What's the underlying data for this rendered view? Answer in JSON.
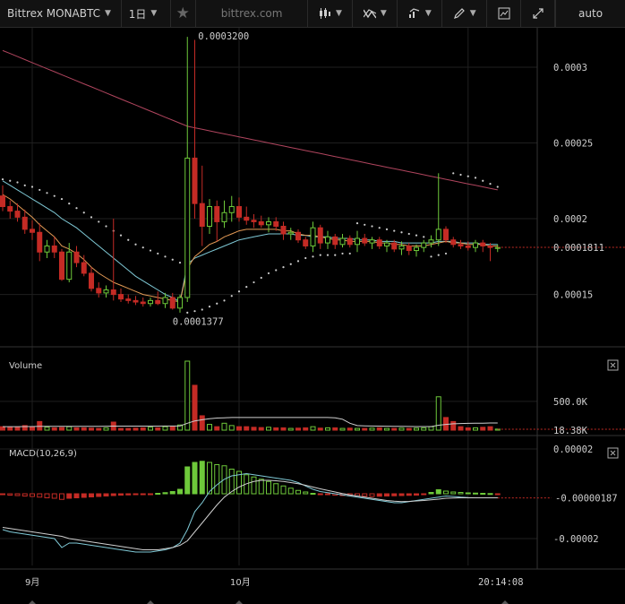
{
  "toolbar": {
    "symbol_label": "Bittrex MONABTC",
    "interval_label": "1日",
    "star_icon": "star-icon",
    "watermark": "bittrex.com",
    "bar_style_icon": "candles-icon",
    "indicators_icon": "indicators-icon",
    "compare_icon": "compare-icon",
    "drawing_icon": "pencil-icon",
    "screenshot_icon": "chart-snapshot-icon",
    "fullscreen_icon": "fullscreen-icon",
    "scale_label": "auto"
  },
  "colors": {
    "up": "#6ec93a",
    "down": "#c42b25",
    "ema_short": "#e39a55",
    "ema_long": "#7fc9d6",
    "sma200": "#b0455e",
    "sar": "#cccccc",
    "grid": "#1f1f1f"
  },
  "chart_data": [
    {
      "type": "candlestick",
      "pane": "price",
      "symbol": "Bittrex MONABTC",
      "interval": "1日",
      "x_labels": [
        "9月",
        "10月"
      ],
      "yticks": [
        "0.00015",
        "0.0002",
        "0.00025",
        "0.0003"
      ],
      "ylim": [
        0.000119,
        0.000326
      ],
      "last_price": "0.0001811",
      "high_annotation": "0.0003200",
      "low_annotation": "0.0001377",
      "ohlc": [
        [
          0.000215,
          0.000222,
          0.000205,
          0.000208
        ],
        [
          0.000208,
          0.000212,
          0.0002,
          0.000205
        ],
        [
          0.000205,
          0.00021,
          0.000198,
          0.000201
        ],
        [
          0.000201,
          0.000206,
          0.00019,
          0.000193
        ],
        [
          0.000193,
          0.000199,
          0.000186,
          0.000191
        ],
        [
          0.000191,
          0.000197,
          0.000172,
          0.000178
        ],
        [
          0.000178,
          0.000186,
          0.000174,
          0.000182
        ],
        [
          0.000182,
          0.000188,
          0.000174,
          0.000178
        ],
        [
          0.000178,
          0.00018,
          0.000159,
          0.00016
        ],
        [
          0.00016,
          0.000184,
          0.000158,
          0.000178
        ],
        [
          0.000178,
          0.000182,
          0.000168,
          0.000171
        ],
        [
          0.000171,
          0.000176,
          0.000162,
          0.000164
        ],
        [
          0.000164,
          0.000168,
          0.000152,
          0.000154
        ],
        [
          0.000154,
          0.000158,
          0.000148,
          0.000151
        ],
        [
          0.000151,
          0.000156,
          0.000148,
          0.000153
        ],
        [
          0.000153,
          0.0002,
          0.000146,
          0.00015
        ],
        [
          0.00015,
          0.000154,
          0.000145,
          0.000147
        ],
        [
          0.000147,
          0.00015,
          0.000144,
          0.000146
        ],
        [
          0.000146,
          0.000149,
          0.000143,
          0.000145
        ],
        [
          0.000145,
          0.000148,
          0.000142,
          0.000144
        ],
        [
          0.000144,
          0.000148,
          0.000142,
          0.000146
        ],
        [
          0.000146,
          0.000152,
          0.000143,
          0.000144
        ],
        [
          0.000144,
          0.000151,
          0.000141,
          0.000148
        ],
        [
          0.000148,
          0.000151,
          0.00014,
          0.000141
        ],
        [
          0.000141,
          0.00015,
          0.000138,
          0.000148
        ],
        [
          0.000148,
          0.00032,
          0.000145,
          0.00024
        ],
        [
          0.00024,
          0.000318,
          0.0002,
          0.00021
        ],
        [
          0.00021,
          0.000235,
          0.000182,
          0.000195
        ],
        [
          0.000195,
          0.000213,
          0.00019,
          0.000208
        ],
        [
          0.000208,
          0.000212,
          0.000185,
          0.000198
        ],
        [
          0.000198,
          0.000212,
          0.000194,
          0.000204
        ],
        [
          0.000204,
          0.000215,
          0.000198,
          0.000208
        ],
        [
          0.000208,
          0.000214,
          0.000198,
          0.000201
        ],
        [
          0.000201,
          0.000208,
          0.000196,
          0.000199
        ],
        [
          0.000199,
          0.000203,
          0.000194,
          0.000198
        ],
        [
          0.000198,
          0.000202,
          0.000194,
          0.000196
        ],
        [
          0.000196,
          0.000201,
          0.000191,
          0.000198
        ],
        [
          0.000198,
          0.000201,
          0.000192,
          0.000195
        ],
        [
          0.000195,
          0.000198,
          0.000186,
          0.00019
        ],
        [
          0.00019,
          0.000194,
          0.000186,
          0.000191
        ],
        [
          0.000191,
          0.000193,
          0.000184,
          0.000186
        ],
        [
          0.000186,
          0.000188,
          0.00018,
          0.000182
        ],
        [
          0.000182,
          0.000198,
          0.000178,
          0.000194
        ],
        [
          0.000194,
          0.000196,
          0.00018,
          0.000184
        ],
        [
          0.000184,
          0.000192,
          0.00018,
          0.000188
        ],
        [
          0.000188,
          0.00019,
          0.00018,
          0.000183
        ],
        [
          0.000183,
          0.00019,
          0.000181,
          0.000187
        ],
        [
          0.000187,
          0.000189,
          0.000181,
          0.000183
        ],
        [
          0.000183,
          0.000192,
          0.000178,
          0.000187
        ],
        [
          0.000187,
          0.00019,
          0.000182,
          0.000184
        ],
        [
          0.000184,
          0.000188,
          0.00018,
          0.000186
        ],
        [
          0.000186,
          0.000188,
          0.00018,
          0.000182
        ],
        [
          0.000182,
          0.000186,
          0.000178,
          0.000184
        ],
        [
          0.000184,
          0.000186,
          0.000178,
          0.00018
        ],
        [
          0.00018,
          0.000185,
          0.000176,
          0.000182
        ],
        [
          0.000182,
          0.000184,
          0.000176,
          0.000179
        ],
        [
          0.000179,
          0.000183,
          0.000175,
          0.000181
        ],
        [
          0.000181,
          0.000186,
          0.000178,
          0.000184
        ],
        [
          0.000184,
          0.000189,
          0.000181,
          0.000186
        ],
        [
          0.000186,
          0.00023,
          0.000182,
          0.000193
        ],
        [
          0.000193,
          0.000195,
          0.000184,
          0.000186
        ],
        [
          0.000186,
          0.000188,
          0.000181,
          0.000183
        ],
        [
          0.000183,
          0.000186,
          0.00018,
          0.000182
        ],
        [
          0.000182,
          0.000185,
          0.000179,
          0.000181
        ],
        [
          0.000181,
          0.000186,
          0.000178,
          0.000184
        ],
        [
          0.000184,
          0.000186,
          0.000178,
          0.000182
        ],
        [
          0.000182,
          0.000184,
          0.000172,
          0.000181
        ],
        [
          0.000181,
          0.000183,
          0.000178,
          0.000181
        ]
      ],
      "sma_long": [
        0.000311,
        0.000309,
        0.000307,
        0.000305,
        0.000303,
        0.000301,
        0.000299,
        0.000297,
        0.000295,
        0.000293,
        0.000291,
        0.000289,
        0.000287,
        0.000285,
        0.000283,
        0.000281,
        0.000279,
        0.000277,
        0.000275,
        0.000273,
        0.000271,
        0.000269,
        0.000267,
        0.000265,
        0.000263,
        0.000261,
        0.00026,
        0.000259,
        0.000258,
        0.000257,
        0.000256,
        0.000255,
        0.000254,
        0.000253,
        0.000252,
        0.000251,
        0.00025,
        0.000249,
        0.000248,
        0.000247,
        0.000246,
        0.000245,
        0.000244,
        0.000243,
        0.000242,
        0.000241,
        0.00024,
        0.000239,
        0.000238,
        0.000237,
        0.000236,
        0.000235,
        0.000234,
        0.000233,
        0.000232,
        0.000231,
        0.00023,
        0.000229,
        0.000228,
        0.000227,
        0.000226,
        0.000225,
        0.000224,
        0.000223,
        0.000222,
        0.000221,
        0.00022,
        0.000219
      ],
      "ema_long": [
        0.000225,
        0.000222,
        0.000219,
        0.000216,
        0.000213,
        0.00021,
        0.000207,
        0.000204,
        0.0002,
        0.000197,
        0.000194,
        0.00019,
        0.000186,
        0.000182,
        0.000178,
        0.000174,
        0.00017,
        0.000166,
        0.000162,
        0.000159,
        0.000156,
        0.000153,
        0.00015,
        0.000148,
        0.000145,
        0.00017,
        0.000174,
        0.000176,
        0.000178,
        0.00018,
        0.000182,
        0.000184,
        0.000186,
        0.000187,
        0.000188,
        0.000189,
        0.00019,
        0.00019,
        0.00019,
        0.00019,
        0.000189,
        0.000189,
        0.000188,
        0.000188,
        0.000188,
        0.000187,
        0.000187,
        0.000187,
        0.000186,
        0.000186,
        0.000186,
        0.000185,
        0.000185,
        0.000185,
        0.000184,
        0.000184,
        0.000184,
        0.000184,
        0.000184,
        0.000185,
        0.000185,
        0.000185,
        0.000184,
        0.000184,
        0.000184,
        0.000183,
        0.000183,
        0.000183
      ],
      "ema_short": [
        0.000216,
        0.000213,
        0.000209,
        0.000205,
        0.000201,
        0.000196,
        0.000192,
        0.000188,
        0.000182,
        0.00018,
        0.000177,
        0.000173,
        0.000168,
        0.000164,
        0.000161,
        0.000158,
        0.000156,
        0.000154,
        0.000152,
        0.00015,
        0.000149,
        0.000148,
        0.000147,
        0.000146,
        0.000145,
        0.000167,
        0.000175,
        0.000179,
        0.000183,
        0.000185,
        0.000188,
        0.00019,
        0.000192,
        0.000193,
        0.000193,
        0.000193,
        0.000193,
        0.000193,
        0.000192,
        0.000192,
        0.00019,
        0.000189,
        0.000189,
        0.000188,
        0.000187,
        0.000186,
        0.000186,
        0.000185,
        0.000185,
        0.000185,
        0.000185,
        0.000184,
        0.000184,
        0.000183,
        0.000183,
        0.000182,
        0.000182,
        0.000182,
        0.000183,
        0.000184,
        0.000185,
        0.000184,
        0.000184,
        0.000183,
        0.000183,
        0.000183,
        0.000182,
        0.000182
      ],
      "sar": [
        0.000226,
        0.000225,
        0.000224,
        0.000222,
        0.000221,
        0.000219,
        0.000217,
        0.000215,
        0.000213,
        0.00021,
        0.000207,
        0.000204,
        0.000201,
        0.000198,
        0.000195,
        0.000192,
        0.000189,
        0.000186,
        0.000183,
        0.000181,
        0.000179,
        0.000177,
        0.000175,
        0.000173,
        0.000171,
        0.000138,
        0.000139,
        0.00014,
        0.000142,
        0.000144,
        0.000146,
        0.000149,
        0.000152,
        0.000155,
        0.000158,
        0.000161,
        0.000164,
        0.000166,
        0.000168,
        0.00017,
        0.000172,
        0.000174,
        0.000175,
        0.000176,
        0.000176,
        0.000176,
        0.000177,
        0.000177,
        0.000197,
        0.000196,
        0.000195,
        0.000194,
        0.000193,
        0.000192,
        0.000191,
        0.00019,
        0.000189,
        0.000188,
        0.000175,
        0.000176,
        0.000177,
        0.00023,
        0.000229,
        0.000228,
        0.000227,
        0.000225,
        0.000223,
        0.000221
      ]
    },
    {
      "type": "bar",
      "pane": "volume",
      "title": "Volume",
      "yticks": [
        "500.0K"
      ],
      "ylim": [
        0,
        1200000
      ],
      "last_value": "18.38K",
      "values": [
        60000,
        55000,
        50000,
        80000,
        60000,
        150000,
        50000,
        40000,
        45000,
        60000,
        40000,
        40000,
        35000,
        30000,
        40000,
        140000,
        30000,
        30000,
        35000,
        40000,
        50000,
        40000,
        60000,
        60000,
        90000,
        1200000,
        780000,
        250000,
        100000,
        60000,
        120000,
        80000,
        60000,
        60000,
        50000,
        45000,
        50000,
        40000,
        40000,
        30000,
        35000,
        40000,
        60000,
        35000,
        40000,
        40000,
        30000,
        35000,
        30000,
        30000,
        35000,
        40000,
        30000,
        30000,
        35000,
        30000,
        35000,
        40000,
        60000,
        580000,
        220000,
        150000,
        60000,
        40000,
        40000,
        50000,
        60000,
        18380
      ],
      "ma": [
        60000,
        60000,
        60000,
        62000,
        62000,
        65000,
        65000,
        66000,
        66000,
        67000,
        67000,
        67000,
        67000,
        67000,
        68000,
        70000,
        70000,
        70000,
        70000,
        70000,
        70000,
        70000,
        71000,
        71000,
        72000,
        120000,
        160000,
        180000,
        200000,
        210000,
        215000,
        220000,
        220000,
        220000,
        220000,
        220000,
        220000,
        220000,
        220000,
        220000,
        220000,
        220000,
        220000,
        220000,
        220000,
        215000,
        190000,
        120000,
        80000,
        75000,
        72000,
        70000,
        68000,
        66000,
        65000,
        64000,
        63000,
        62000,
        63000,
        85000,
        100000,
        110000,
        115000,
        118000,
        120000,
        122000,
        124000,
        125000
      ]
    },
    {
      "type": "bar",
      "pane": "macd",
      "title": "MACD(10,26,9)",
      "yticks": [
        "0.00002",
        "-0.00002"
      ],
      "ylim": [
        -3.2e-05,
        2.4e-05
      ],
      "last_value": "-0.00000187",
      "histogram": [
        -4e-07,
        -6e-07,
        -8e-07,
        -1e-06,
        -1.2e-06,
        -1.5e-06,
        -1.8e-06,
        -2e-06,
        -2.5e-06,
        -2e-06,
        -1.8e-06,
        -1.6e-06,
        -1.4e-06,
        -1.2e-06,
        -1e-06,
        -8e-07,
        -6e-07,
        -5e-07,
        -4e-07,
        -3e-07,
        -2e-07,
        2e-07,
        5e-07,
        1e-06,
        2e-06,
        1.2e-05,
        1.4e-05,
        1.45e-05,
        1.4e-05,
        1.3e-05,
        1.25e-05,
        1.1e-05,
        1e-05,
        8.5e-06,
        7.5e-06,
        6.5e-06,
        5.5e-06,
        4.5e-06,
        3.5e-06,
        2.5e-06,
        1.5e-06,
        8e-07,
        2e-07,
        -2e-07,
        -4e-07,
        -6e-07,
        -8e-07,
        -9e-07,
        -1e-06,
        -1.1e-06,
        -1.2e-06,
        -1.1e-06,
        -1e-06,
        -9e-07,
        -8e-07,
        -7e-07,
        -6e-07,
        -4e-07,
        6e-07,
        1.8e-06,
        1.2e-06,
        8e-07,
        6e-07,
        4e-07,
        3e-07,
        2e-07,
        1e-07,
        -4e-07
      ],
      "macd": [
        -1.6e-05,
        -1.7e-05,
        -1.75e-05,
        -1.8e-05,
        -1.85e-05,
        -1.9e-05,
        -1.95e-05,
        -2e-05,
        -2.4e-05,
        -2.2e-05,
        -2.2e-05,
        -2.25e-05,
        -2.3e-05,
        -2.35e-05,
        -2.4e-05,
        -2.45e-05,
        -2.5e-05,
        -2.55e-05,
        -2.6e-05,
        -2.6e-05,
        -2.6e-05,
        -2.55e-05,
        -2.5e-05,
        -2.4e-05,
        -2.2e-05,
        -1.6e-05,
        -8e-06,
        -4e-06,
        1e-06,
        4e-06,
        6.5e-06,
        8e-06,
        8.5e-06,
        9e-06,
        8.5e-06,
        8e-06,
        7.5e-06,
        7e-06,
        6.5e-06,
        6e-06,
        5e-06,
        3.5e-06,
        2e-06,
        1e-06,
        5e-07,
        0,
        -5e-07,
        -1e-06,
        -1.5e-06,
        -2e-06,
        -2.5e-06,
        -3e-06,
        -3.5e-06,
        -4e-06,
        -4e-06,
        -3.5e-06,
        -3e-06,
        -2.5e-06,
        -2e-06,
        -1.5e-06,
        -1e-06,
        -1.2e-06,
        -1.5e-06,
        -1.7e-06,
        -1.8e-06,
        -1.8e-06,
        -1.8e-06,
        -1.8e-06
      ],
      "signal": [
        -1.5e-05,
        -1.55e-05,
        -1.6e-05,
        -1.65e-05,
        -1.7e-05,
        -1.75e-05,
        -1.8e-05,
        -1.85e-05,
        -1.9e-05,
        -2e-05,
        -2.05e-05,
        -2.1e-05,
        -2.15e-05,
        -2.2e-05,
        -2.25e-05,
        -2.3e-05,
        -2.35e-05,
        -2.4e-05,
        -2.45e-05,
        -2.5e-05,
        -2.5e-05,
        -2.5e-05,
        -2.45e-05,
        -2.4e-05,
        -2.3e-05,
        -2.1e-05,
        -1.7e-05,
        -1.3e-05,
        -9e-06,
        -5e-06,
        -1.5e-06,
        1e-06,
        3e-06,
        4.5e-06,
        5.5e-06,
        6e-06,
        6e-06,
        5.8e-06,
        5.5e-06,
        5e-06,
        4.5e-06,
        3.8e-06,
        3e-06,
        2.2e-06,
        1.5e-06,
        8e-07,
        1e-07,
        -5e-07,
        -1e-06,
        -1.5e-06,
        -2e-06,
        -2.5e-06,
        -3e-06,
        -3.3e-06,
        -3.5e-06,
        -3.4e-06,
        -3.2e-06,
        -3e-06,
        -2.7e-06,
        -2.4e-06,
        -2e-06,
        -1.9e-06,
        -1.8e-06,
        -1.8e-06,
        -1.8e-06,
        -1.8e-06,
        -1.8e-06,
        -1.8e-06
      ]
    }
  ],
  "time_axis": {
    "right_label": "20:14:08"
  },
  "pane_close_icon": "close-box-icon"
}
